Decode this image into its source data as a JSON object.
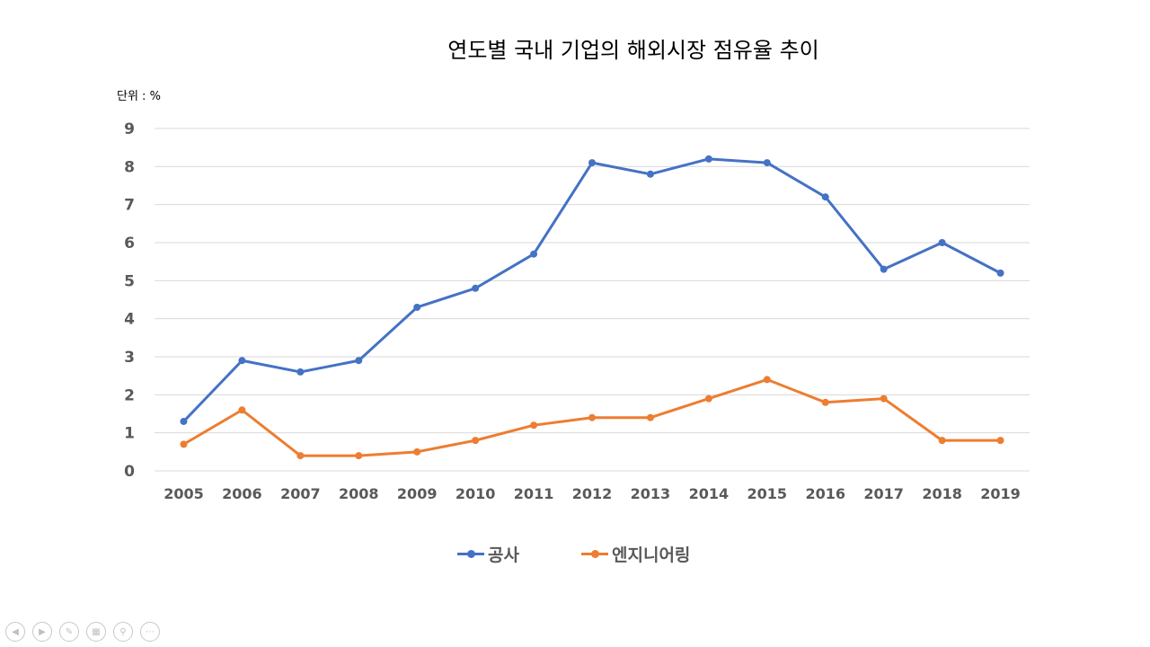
{
  "chart_data": {
    "type": "line",
    "title": "연도별 국내 기업의 해외시장 점유율 추이",
    "unit_label": "단위 : %",
    "categories": [
      "2005",
      "2006",
      "2007",
      "2008",
      "2009",
      "2010",
      "2011",
      "2012",
      "2013",
      "2014",
      "2015",
      "2016",
      "2017",
      "2018",
      "2019"
    ],
    "y_ticks": [
      "0",
      "1",
      "2",
      "3",
      "4",
      "5",
      "6",
      "7",
      "8",
      "9"
    ],
    "ylim": [
      0,
      9
    ],
    "grid": true,
    "legend_position": "bottom",
    "series": [
      {
        "name": "공사",
        "color": "#4472C4",
        "values": [
          1.3,
          2.9,
          2.6,
          2.9,
          4.3,
          4.8,
          5.7,
          8.1,
          7.8,
          8.2,
          8.1,
          7.2,
          5.3,
          6.0,
          5.2
        ]
      },
      {
        "name": "엔지니어링",
        "color": "#ED7D31",
        "values": [
          0.7,
          1.6,
          0.4,
          0.4,
          0.5,
          0.8,
          1.2,
          1.4,
          1.4,
          1.9,
          2.4,
          1.8,
          1.9,
          0.8,
          0.8
        ]
      }
    ]
  },
  "controls": {
    "prev_icon": "chevron-left-icon",
    "next_icon": "chevron-right-icon",
    "pen_icon": "pen-icon",
    "slides_icon": "slides-icon",
    "zoom_icon": "zoom-icon",
    "more_icon": "more-icon"
  }
}
